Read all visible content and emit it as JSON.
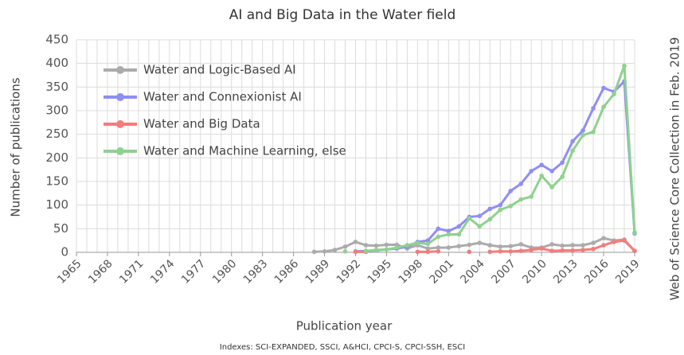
{
  "chart_data": {
    "type": "line",
    "title": "AI and Big Data in the Water field",
    "xlabel": "Publication year",
    "ylabel": "Number of publications",
    "right_note": "Web of Science Core Collection in Feb. 2019",
    "footnote": "Indexes: SCI-EXPANDED, SSCI, A&HCI, CPCI-S, CPCI-SSH, ESCI",
    "x": [
      1965,
      1966,
      1967,
      1968,
      1969,
      1970,
      1971,
      1972,
      1973,
      1974,
      1975,
      1976,
      1977,
      1978,
      1979,
      1980,
      1981,
      1982,
      1983,
      1984,
      1985,
      1986,
      1987,
      1988,
      1989,
      1990,
      1991,
      1992,
      1993,
      1994,
      1995,
      1996,
      1997,
      1998,
      1999,
      2000,
      2001,
      2002,
      2003,
      2004,
      2005,
      2006,
      2007,
      2008,
      2009,
      2010,
      2011,
      2012,
      2013,
      2014,
      2015,
      2016,
      2017,
      2018,
      2019
    ],
    "xlim": [
      1965,
      2019
    ],
    "xticks": [
      1965,
      1968,
      1971,
      1974,
      1977,
      1980,
      1983,
      1986,
      1989,
      1992,
      1995,
      1998,
      2001,
      2004,
      2007,
      2010,
      2013,
      2016,
      2019
    ],
    "ylim": [
      0,
      450
    ],
    "yticks": [
      0,
      50,
      100,
      150,
      200,
      250,
      300,
      350,
      400,
      450
    ],
    "grid": true,
    "legend": "upper left",
    "series": [
      {
        "name": "Water and Logic-Based AI",
        "color": "#ababab",
        "values": [
          null,
          null,
          null,
          null,
          null,
          null,
          null,
          null,
          null,
          null,
          null,
          null,
          null,
          null,
          null,
          null,
          null,
          null,
          null,
          null,
          null,
          null,
          null,
          1,
          2,
          5,
          12,
          22,
          15,
          14,
          16,
          16,
          8,
          15,
          8,
          10,
          10,
          13,
          16,
          20,
          15,
          12,
          13,
          17,
          10,
          10,
          17,
          14,
          15,
          15,
          20,
          30,
          25,
          27,
          3
        ]
      },
      {
        "name": "Water and Connexionist AI",
        "color": "#8e8ef6",
        "values": [
          null,
          null,
          null,
          null,
          null,
          null,
          null,
          null,
          null,
          null,
          null,
          null,
          null,
          null,
          null,
          null,
          null,
          null,
          null,
          null,
          null,
          null,
          null,
          null,
          null,
          null,
          null,
          2,
          3,
          4,
          6,
          8,
          12,
          22,
          25,
          50,
          45,
          55,
          75,
          77,
          92,
          100,
          130,
          145,
          172,
          185,
          172,
          190,
          235,
          258,
          305,
          348,
          340,
          362,
          40
        ]
      },
      {
        "name": "Water and Big Data",
        "color": "#f47c7c",
        "values": [
          null,
          null,
          null,
          null,
          null,
          null,
          null,
          null,
          null,
          null,
          null,
          null,
          null,
          null,
          null,
          null,
          null,
          null,
          null,
          null,
          null,
          null,
          null,
          null,
          null,
          null,
          null,
          1,
          1,
          null,
          null,
          null,
          null,
          1,
          1,
          2,
          null,
          null,
          1,
          null,
          1,
          2,
          2,
          3,
          5,
          8,
          3,
          4,
          4,
          5,
          7,
          15,
          22,
          25,
          3
        ]
      },
      {
        "name": "Water and Machine Learning, else",
        "color": "#8fd18f",
        "values": [
          null,
          null,
          null,
          null,
          null,
          null,
          null,
          null,
          null,
          null,
          null,
          null,
          null,
          null,
          null,
          null,
          null,
          null,
          null,
          null,
          null,
          null,
          null,
          null,
          null,
          null,
          2,
          null,
          3,
          5,
          6,
          10,
          15,
          20,
          18,
          33,
          38,
          38,
          72,
          55,
          70,
          90,
          98,
          112,
          118,
          162,
          138,
          160,
          215,
          248,
          255,
          308,
          335,
          395,
          42
        ]
      }
    ]
  }
}
